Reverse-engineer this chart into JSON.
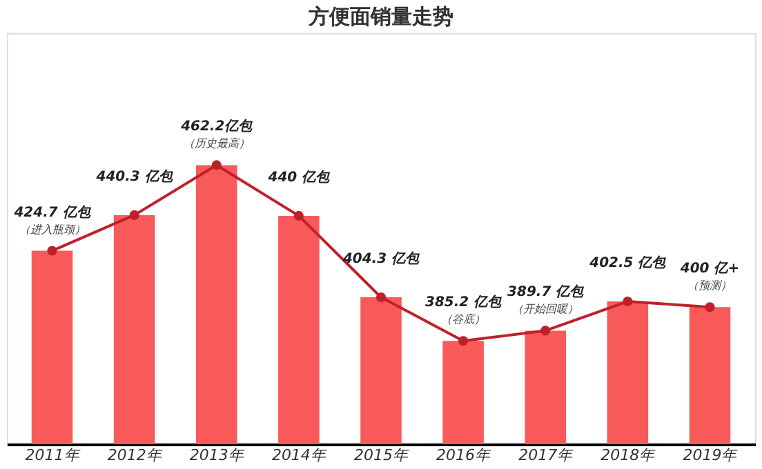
{
  "chart_data": {
    "type": "bar",
    "title": "方便面销量走势",
    "categories": [
      "2011年",
      "2012年",
      "2013年",
      "2014年",
      "2015年",
      "2016年",
      "2017年",
      "2018年",
      "2019年"
    ],
    "ylim": [
      340,
      520
    ],
    "tick_labels": "x",
    "grid": false,
    "marker": "circle",
    "series": [
      {
        "color": "#f85a5a",
        "values": [
          424.7,
          440.3,
          462.2,
          440,
          404.3,
          385.2,
          389.7,
          402.5,
          400
        ],
        "value_labels": [
          "424.7 亿包",
          "440.3 亿包",
          "462.2亿包",
          "440 亿包",
          "404.3 亿包",
          "385.2 亿包",
          "389.7 亿包",
          "402.5 亿包",
          "400 亿+"
        ]
      },
      {
        "type": "line",
        "color": "#c0202a",
        "values": [
          424.7,
          440.3,
          462.2,
          440,
          404.3,
          385.2,
          389.7,
          402.5,
          400
        ]
      }
    ],
    "annotations": [
      {
        "text": "（进入瓶颈）",
        "x": "2011年",
        "y": 424.7
      },
      {
        "text": "（历史最高）",
        "x": "2013年",
        "y": 462.2
      },
      {
        "text": "（谷底）",
        "x": "2016年",
        "y": 385.2
      },
      {
        "text": "（开始回暖）",
        "x": "2017年",
        "y": 389.7
      },
      {
        "text": "（预测）",
        "x": "2019年",
        "y": 400
      }
    ]
  }
}
